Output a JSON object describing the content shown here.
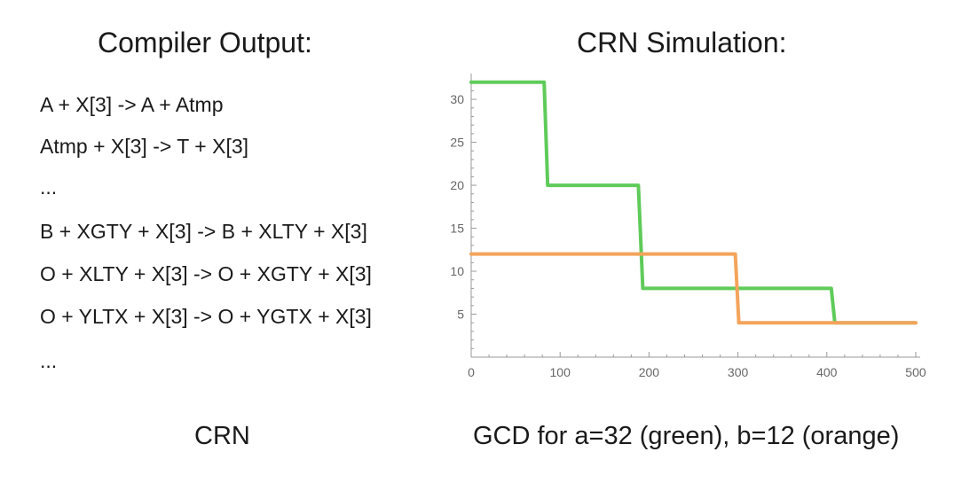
{
  "left": {
    "title": "Compiler Output:",
    "lines": [
      "A + X[3] -> A + Atmp",
      "Atmp + X[3] -> T + X[3]",
      "...",
      "B + XGTY + X[3] -> B + XLTY + X[3]",
      "O + XLTY + X[3] -> O + XGTY + X[3]",
      "O + YLTX + X[3] -> O + YGTX + X[3]",
      "..."
    ],
    "caption": "CRN"
  },
  "right": {
    "title": "CRN Simulation:",
    "caption": "GCD for a=32 (green), b=12 (orange)"
  },
  "chart_data": {
    "type": "line",
    "xlim": [
      0,
      505
    ],
    "ylim": [
      0,
      33
    ],
    "x_ticks": [
      0,
      100,
      200,
      300,
      400,
      500
    ],
    "y_ticks": [
      5,
      10,
      15,
      20,
      25,
      30
    ],
    "grid": false,
    "series": [
      {
        "color": "#5fcb5a",
        "points": [
          [
            0,
            32
          ],
          [
            82,
            32
          ],
          [
            86,
            20
          ],
          [
            188,
            20
          ],
          [
            193,
            8
          ],
          [
            405,
            8
          ],
          [
            409,
            4
          ],
          [
            500,
            4
          ]
        ]
      },
      {
        "color": "#f4a45b",
        "points": [
          [
            0,
            12
          ],
          [
            297,
            12
          ],
          [
            301,
            4
          ],
          [
            500,
            4
          ]
        ]
      }
    ]
  }
}
